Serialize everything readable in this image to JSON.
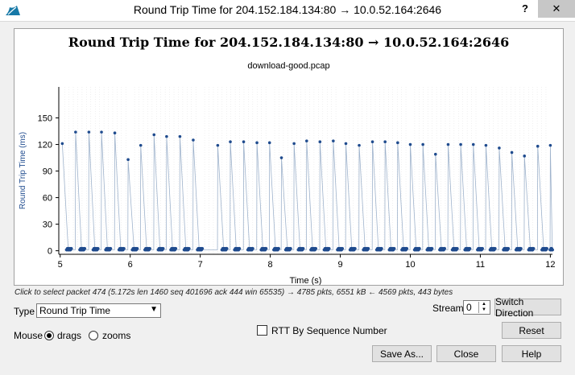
{
  "window": {
    "title": "Round Trip Time for 204.152.184.134:80 → 10.0.52.164:2646",
    "help_label": "?",
    "close_label": "✕"
  },
  "chart_data": {
    "type": "scatter",
    "title": "Round Trip Time for 204.152.184.134:80 → 10.0.52.164:2646",
    "subtitle": "download-good.pcap",
    "xlabel": "Time (s)",
    "ylabel": "Round Trip Time (ms)",
    "xlim": [
      4.98,
      12.03
    ],
    "ylim": [
      -4,
      185
    ],
    "xticks": [
      5,
      6,
      7,
      8,
      9,
      10,
      11,
      12
    ],
    "yticks": [
      0,
      30,
      60,
      90,
      120,
      150
    ],
    "grid": "vertical dotted",
    "point_color": "#1f4b8e",
    "line_color": "#9fb3cc",
    "peaks": [
      {
        "x": 5.03,
        "y": 121
      },
      {
        "x": 5.22,
        "y": 134
      },
      {
        "x": 5.41,
        "y": 134
      },
      {
        "x": 5.59,
        "y": 134
      },
      {
        "x": 5.78,
        "y": 133
      },
      {
        "x": 5.97,
        "y": 103
      },
      {
        "x": 6.15,
        "y": 119
      },
      {
        "x": 6.34,
        "y": 131
      },
      {
        "x": 6.52,
        "y": 129
      },
      {
        "x": 6.71,
        "y": 129
      },
      {
        "x": 6.9,
        "y": 125
      },
      {
        "x": 7.25,
        "y": 119
      },
      {
        "x": 7.43,
        "y": 123
      },
      {
        "x": 7.62,
        "y": 123
      },
      {
        "x": 7.81,
        "y": 122
      },
      {
        "x": 7.99,
        "y": 122
      },
      {
        "x": 8.16,
        "y": 105
      },
      {
        "x": 8.34,
        "y": 121
      },
      {
        "x": 8.52,
        "y": 124
      },
      {
        "x": 8.71,
        "y": 123
      },
      {
        "x": 8.9,
        "y": 124
      },
      {
        "x": 9.08,
        "y": 121
      },
      {
        "x": 9.27,
        "y": 119
      },
      {
        "x": 9.46,
        "y": 123
      },
      {
        "x": 9.64,
        "y": 123
      },
      {
        "x": 9.82,
        "y": 122
      },
      {
        "x": 10.0,
        "y": 120
      },
      {
        "x": 10.18,
        "y": 120
      },
      {
        "x": 10.36,
        "y": 109
      },
      {
        "x": 10.54,
        "y": 120
      },
      {
        "x": 10.72,
        "y": 120
      },
      {
        "x": 10.9,
        "y": 120
      },
      {
        "x": 11.08,
        "y": 119
      },
      {
        "x": 11.27,
        "y": 116
      },
      {
        "x": 11.45,
        "y": 111
      },
      {
        "x": 11.63,
        "y": 107
      },
      {
        "x": 11.82,
        "y": 118
      },
      {
        "x": 12.0,
        "y": 119
      }
    ],
    "baseline_y": 1
  },
  "status_text": "Click to select packet 474 (5.172s len 1460 seq 401696 ack 444 win 65535) → 4785 pkts, 6551 kB ← 4569 pkts, 443 bytes",
  "controls": {
    "type_label": "Type",
    "type_value": "Round Trip Time",
    "mouse_label": "Mouse",
    "drags_label": "drags",
    "zooms_label": "zooms",
    "mouse_mode": "drags",
    "stream_label": "Stream",
    "stream_value": "0",
    "switch_direction_label": "Switch Direction",
    "rtt_by_seq_label": "RTT By Sequence Number",
    "rtt_by_seq_checked": false,
    "reset_label": "Reset",
    "save_as_label": "Save As...",
    "close_label": "Close",
    "help_label": "Help"
  }
}
